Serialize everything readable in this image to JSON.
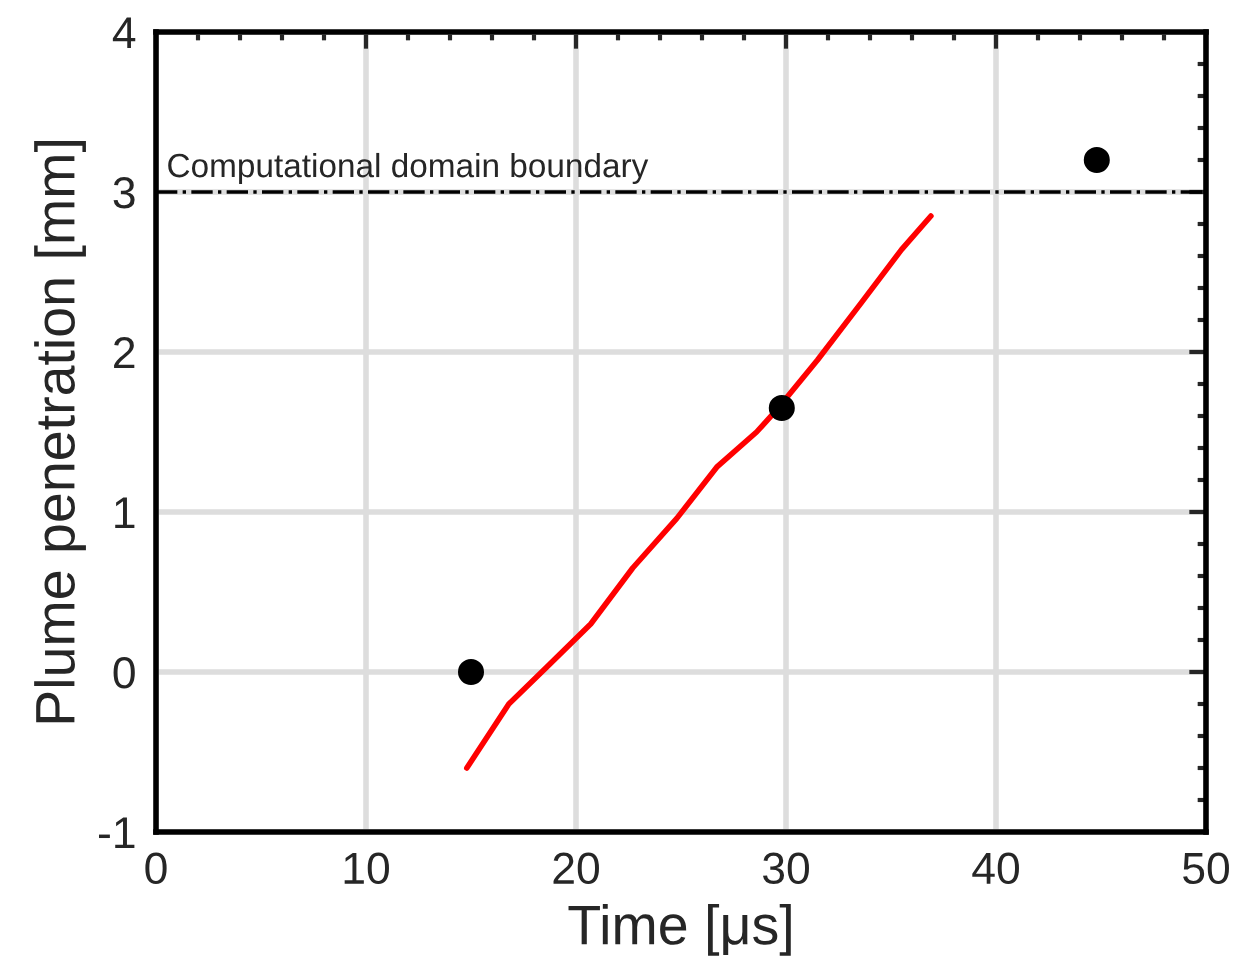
{
  "chart_data": {
    "type": "line",
    "xlabel": "Time [μs]",
    "ylabel": "Plume penetration [mm]",
    "xlim": [
      0,
      50
    ],
    "ylim": [
      -1,
      4
    ],
    "xticks": [
      0,
      10,
      20,
      30,
      40,
      50
    ],
    "yticks": [
      -1,
      0,
      1,
      2,
      3,
      4
    ],
    "grid": true,
    "series": [
      {
        "color": "#ff0000",
        "marker": "none",
        "line_style": "solid",
        "x": [
          14.8,
          16.8,
          18.6,
          20.7,
          22.7,
          24.8,
          26.7,
          28.6,
          29.5,
          31.5,
          33.6,
          35.5,
          36.9
        ],
        "values": [
          -0.6,
          -0.2,
          0.03,
          0.3,
          0.65,
          0.96,
          1.28,
          1.5,
          1.63,
          1.95,
          2.31,
          2.64,
          2.85
        ]
      },
      {
        "type": "scatter",
        "color": "#000000",
        "marker": "circle",
        "x": [
          15,
          29.8,
          44.8
        ],
        "values": [
          0,
          1.65,
          3.2
        ]
      }
    ],
    "ref_lines": [
      {
        "axis": "y",
        "value": 3,
        "label": "Computational domain boundary",
        "color": "#000000",
        "line_style": "dashdot"
      }
    ]
  }
}
